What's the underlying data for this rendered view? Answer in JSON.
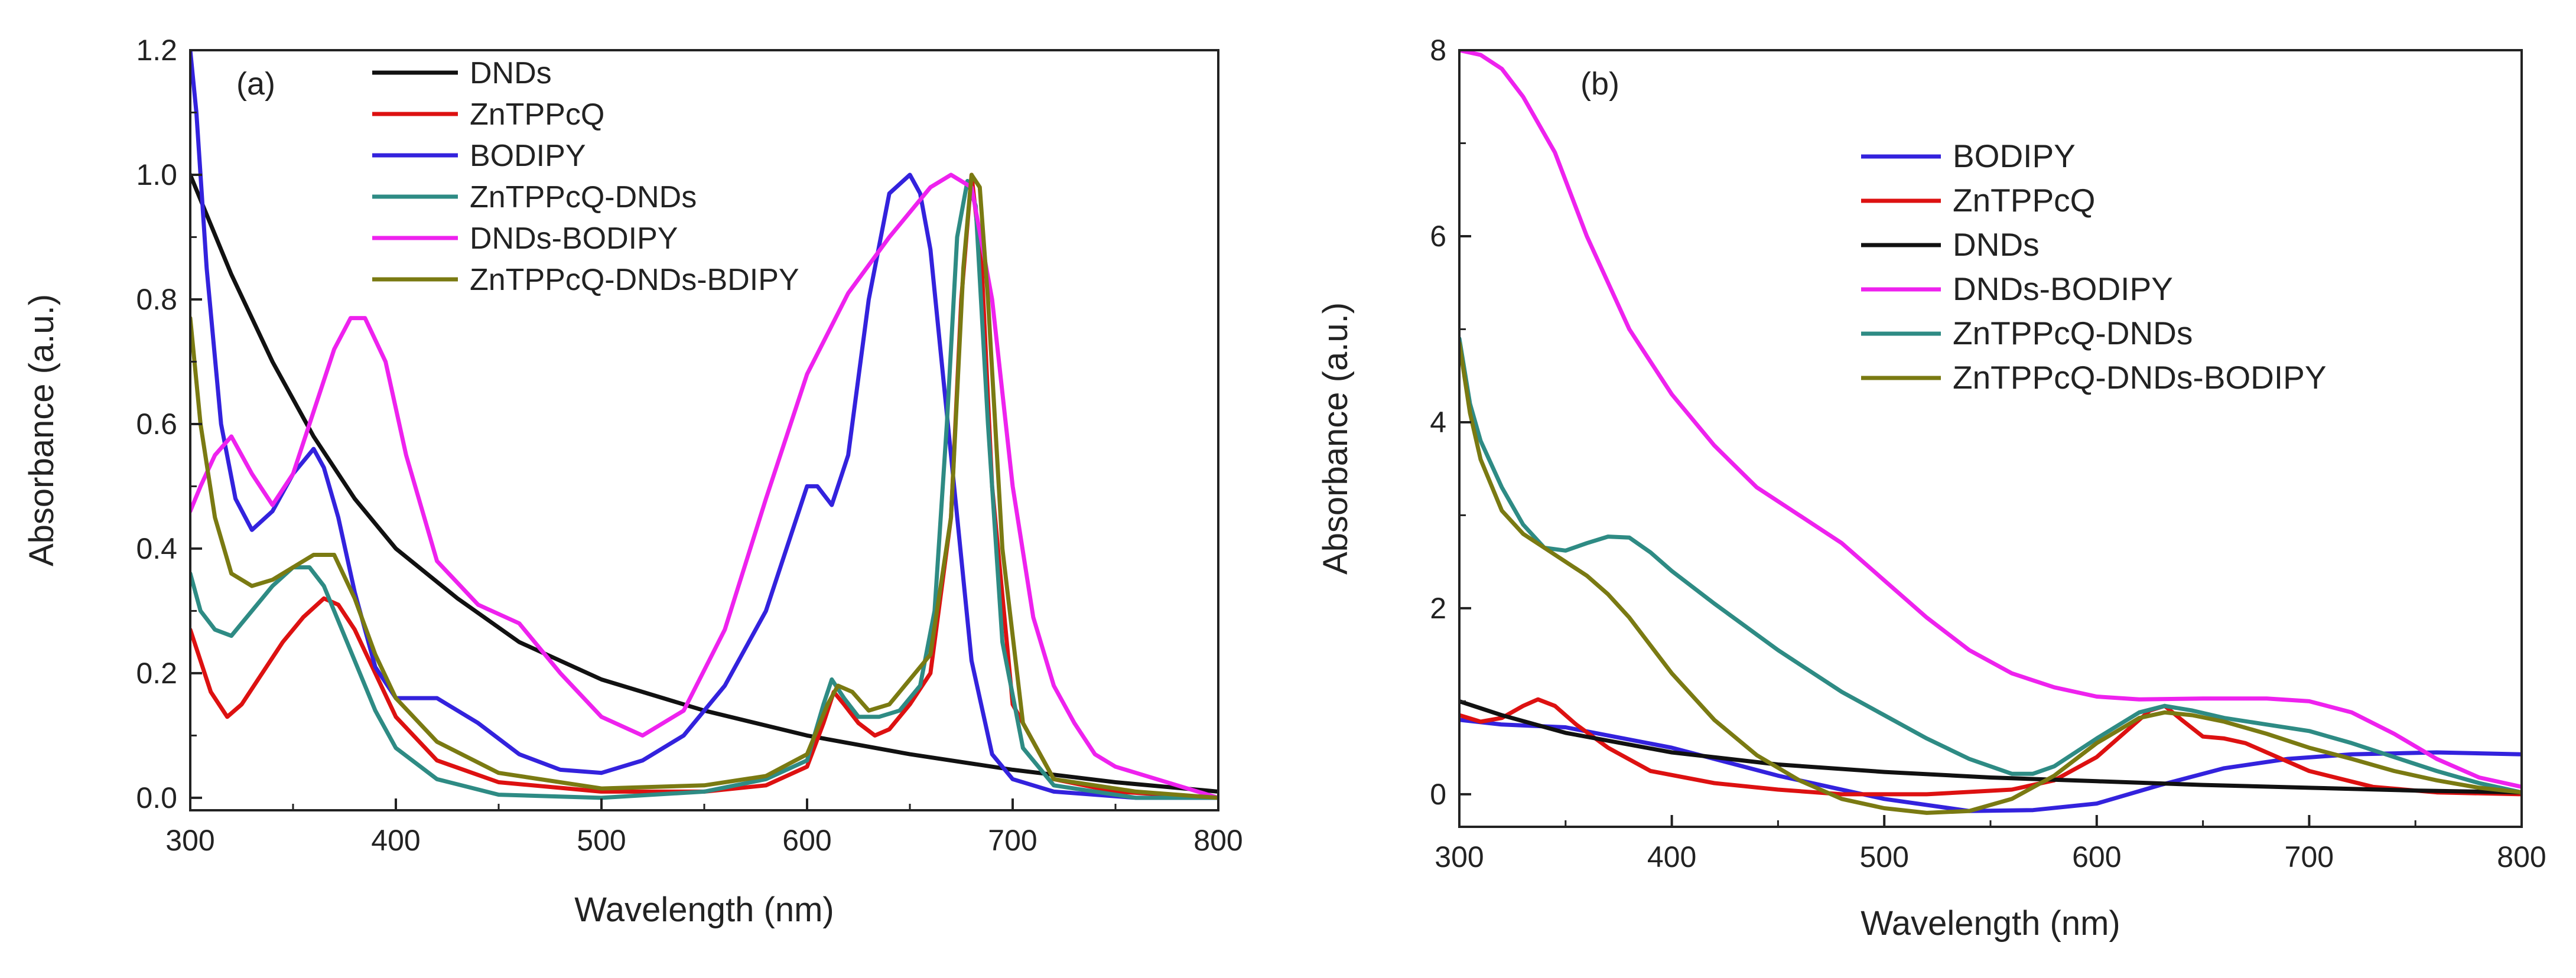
{
  "chart_data": [
    {
      "type": "line",
      "panel_label": "(a)",
      "xlabel": "Wavelength (nm)",
      "ylabel": "Absorbance (a.u.)",
      "xlim": [
        300,
        800
      ],
      "ylim": [
        -0.02,
        1.2
      ],
      "xticks": [
        300,
        400,
        500,
        600,
        700,
        800
      ],
      "yticks": [
        0.0,
        0.2,
        0.4,
        0.6,
        0.8,
        1.0,
        1.2
      ],
      "ytick_labels": [
        "0.0",
        "0.2",
        "0.4",
        "0.6",
        "0.8",
        "1.0",
        "1.2"
      ],
      "grid": false,
      "legend_position": "top-left",
      "legend": [
        "DNDs",
        "ZnTPPcQ",
        "BODIPY",
        "ZnTPPcQ-DNDs",
        "DNDs-BODIPY",
        "ZnTPPcQ-DNDs-BDIPY"
      ],
      "series": [
        {
          "name": "DNDs",
          "color": "#111111",
          "x": [
            300,
            310,
            320,
            340,
            360,
            380,
            400,
            430,
            460,
            500,
            550,
            600,
            650,
            700,
            750,
            800
          ],
          "y": [
            1.0,
            0.92,
            0.84,
            0.7,
            0.58,
            0.48,
            0.4,
            0.32,
            0.25,
            0.19,
            0.14,
            0.1,
            0.07,
            0.045,
            0.025,
            0.01
          ]
        },
        {
          "name": "ZnTPPcQ",
          "color": "#dd1111",
          "x": [
            300,
            305,
            310,
            318,
            325,
            335,
            345,
            355,
            365,
            372,
            380,
            390,
            400,
            420,
            450,
            500,
            550,
            580,
            600,
            608,
            613,
            618,
            625,
            633,
            640,
            650,
            660,
            670,
            675,
            680,
            685,
            690,
            700,
            720,
            750,
            800
          ],
          "y": [
            0.27,
            0.22,
            0.17,
            0.13,
            0.15,
            0.2,
            0.25,
            0.29,
            0.32,
            0.31,
            0.27,
            0.2,
            0.13,
            0.06,
            0.025,
            0.01,
            0.01,
            0.02,
            0.05,
            0.12,
            0.17,
            0.15,
            0.12,
            0.1,
            0.11,
            0.15,
            0.2,
            0.45,
            0.8,
            1.0,
            0.85,
            0.5,
            0.15,
            0.03,
            0.01,
            0.0
          ]
        },
        {
          "name": "BODIPY",
          "color": "#3322dd",
          "x": [
            300,
            303,
            308,
            315,
            322,
            330,
            340,
            350,
            360,
            365,
            372,
            380,
            390,
            400,
            420,
            440,
            460,
            480,
            500,
            520,
            540,
            560,
            580,
            590,
            600,
            605,
            612,
            620,
            630,
            640,
            650,
            655,
            660,
            670,
            680,
            690,
            700,
            720,
            760,
            800
          ],
          "y": [
            1.2,
            1.1,
            0.85,
            0.6,
            0.48,
            0.43,
            0.46,
            0.52,
            0.56,
            0.53,
            0.45,
            0.33,
            0.21,
            0.16,
            0.16,
            0.12,
            0.07,
            0.045,
            0.04,
            0.06,
            0.1,
            0.18,
            0.3,
            0.4,
            0.5,
            0.5,
            0.47,
            0.55,
            0.8,
            0.97,
            1.0,
            0.97,
            0.88,
            0.55,
            0.22,
            0.07,
            0.03,
            0.01,
            0.0,
            0.0
          ]
        },
        {
          "name": "ZnTPPcQ-DNDs",
          "color": "#2e8b84",
          "x": [
            300,
            305,
            312,
            320,
            330,
            340,
            350,
            358,
            365,
            370,
            380,
            390,
            400,
            420,
            450,
            500,
            550,
            580,
            600,
            608,
            612,
            618,
            625,
            635,
            645,
            655,
            662,
            668,
            673,
            678,
            682,
            688,
            695,
            705,
            720,
            760,
            800
          ],
          "y": [
            0.36,
            0.3,
            0.27,
            0.26,
            0.3,
            0.34,
            0.37,
            0.37,
            0.34,
            0.3,
            0.22,
            0.14,
            0.08,
            0.03,
            0.005,
            0.0,
            0.01,
            0.03,
            0.06,
            0.15,
            0.19,
            0.16,
            0.13,
            0.13,
            0.14,
            0.18,
            0.3,
            0.6,
            0.9,
            0.99,
            0.95,
            0.6,
            0.25,
            0.08,
            0.02,
            0.0,
            0.0
          ]
        },
        {
          "name": "DNDs-BODIPY",
          "color": "#ee22ee",
          "x": [
            300,
            305,
            312,
            320,
            330,
            340,
            350,
            360,
            370,
            378,
            385,
            395,
            405,
            420,
            440,
            460,
            480,
            500,
            520,
            540,
            560,
            580,
            600,
            620,
            640,
            660,
            670,
            680,
            690,
            700,
            710,
            720,
            730,
            740,
            750,
            760,
            780,
            800
          ],
          "y": [
            0.46,
            0.5,
            0.55,
            0.58,
            0.52,
            0.47,
            0.52,
            0.62,
            0.72,
            0.77,
            0.77,
            0.7,
            0.55,
            0.38,
            0.31,
            0.28,
            0.2,
            0.13,
            0.1,
            0.14,
            0.27,
            0.48,
            0.68,
            0.81,
            0.9,
            0.98,
            1.0,
            0.98,
            0.8,
            0.5,
            0.29,
            0.18,
            0.12,
            0.07,
            0.05,
            0.04,
            0.02,
            0.0
          ]
        },
        {
          "name": "ZnTPPcQ-DNDs-BDIPY",
          "color": "#7a7a12",
          "x": [
            300,
            305,
            312,
            320,
            330,
            340,
            350,
            360,
            370,
            380,
            390,
            400,
            420,
            450,
            500,
            550,
            580,
            600,
            610,
            615,
            622,
            630,
            640,
            650,
            660,
            670,
            676,
            680,
            684,
            688,
            695,
            705,
            720,
            760,
            800
          ],
          "y": [
            0.77,
            0.6,
            0.45,
            0.36,
            0.34,
            0.35,
            0.37,
            0.39,
            0.39,
            0.32,
            0.23,
            0.16,
            0.09,
            0.04,
            0.015,
            0.02,
            0.035,
            0.07,
            0.15,
            0.18,
            0.17,
            0.14,
            0.15,
            0.19,
            0.23,
            0.45,
            0.85,
            1.0,
            0.98,
            0.8,
            0.4,
            0.12,
            0.03,
            0.01,
            0.0
          ]
        }
      ]
    },
    {
      "type": "line",
      "panel_label": "(b)",
      "xlabel": "Wavelength (nm)",
      "ylabel": "Absorbance (a.u.)",
      "xlim": [
        300,
        800
      ],
      "ylim": [
        -0.35,
        8.0
      ],
      "xticks": [
        300,
        400,
        500,
        600,
        700,
        800
      ],
      "yticks": [
        0,
        2,
        4,
        6,
        8
      ],
      "ytick_labels": [
        "0",
        "2",
        "4",
        "6",
        "8"
      ],
      "grid": false,
      "legend_position": "top-right",
      "legend": [
        "BODIPY",
        "ZnTPPcQ",
        "DNDs",
        "DNDs-BODIPY",
        "ZnTPPcQ-DNDs",
        "ZnTPPcQ-DNDs-BODIPY"
      ],
      "series": [
        {
          "name": "BODIPY",
          "color": "#3322dd",
          "x": [
            300,
            320,
            350,
            400,
            450,
            500,
            540,
            570,
            600,
            630,
            660,
            690,
            720,
            760,
            800
          ],
          "y": [
            0.8,
            0.75,
            0.72,
            0.5,
            0.2,
            -0.05,
            -0.18,
            -0.17,
            -0.1,
            0.1,
            0.28,
            0.38,
            0.43,
            0.45,
            0.43
          ]
        },
        {
          "name": "ZnTPPcQ",
          "color": "#dd1111",
          "x": [
            300,
            310,
            320,
            330,
            337,
            345,
            355,
            370,
            390,
            420,
            450,
            480,
            520,
            560,
            580,
            600,
            615,
            625,
            632,
            640,
            650,
            660,
            670,
            680,
            700,
            730,
            760,
            800
          ],
          "y": [
            0.85,
            0.78,
            0.82,
            0.95,
            1.02,
            0.95,
            0.75,
            0.5,
            0.25,
            0.12,
            0.05,
            0.0,
            0.0,
            0.05,
            0.15,
            0.4,
            0.7,
            0.9,
            0.95,
            0.8,
            0.62,
            0.6,
            0.55,
            0.45,
            0.25,
            0.08,
            0.02,
            0.0
          ]
        },
        {
          "name": "DNDs",
          "color": "#111111",
          "x": [
            300,
            320,
            350,
            400,
            450,
            500,
            550,
            600,
            650,
            700,
            750,
            800
          ],
          "y": [
            1.0,
            0.85,
            0.66,
            0.45,
            0.32,
            0.24,
            0.18,
            0.14,
            0.1,
            0.07,
            0.04,
            0.02
          ]
        },
        {
          "name": "DNDs-BODIPY",
          "color": "#ee22ee",
          "x": [
            300,
            310,
            320,
            330,
            345,
            360,
            380,
            400,
            420,
            440,
            460,
            480,
            500,
            520,
            540,
            560,
            580,
            600,
            620,
            650,
            680,
            700,
            720,
            740,
            760,
            780,
            800
          ],
          "y": [
            8.0,
            7.95,
            7.8,
            7.5,
            6.9,
            6.0,
            5.0,
            4.3,
            3.75,
            3.3,
            3.0,
            2.7,
            2.3,
            1.9,
            1.55,
            1.3,
            1.15,
            1.05,
            1.02,
            1.03,
            1.03,
            1.0,
            0.88,
            0.65,
            0.38,
            0.18,
            0.08
          ]
        },
        {
          "name": "ZnTPPcQ-DNDs",
          "color": "#2e8b84",
          "x": [
            300,
            305,
            310,
            320,
            330,
            340,
            350,
            360,
            370,
            380,
            390,
            400,
            420,
            450,
            480,
            500,
            520,
            540,
            560,
            570,
            580,
            600,
            620,
            632,
            645,
            660,
            680,
            700,
            720,
            740,
            760,
            780,
            800
          ],
          "y": [
            4.9,
            4.2,
            3.8,
            3.3,
            2.9,
            2.65,
            2.62,
            2.7,
            2.77,
            2.76,
            2.6,
            2.4,
            2.05,
            1.55,
            1.1,
            0.85,
            0.6,
            0.38,
            0.22,
            0.22,
            0.3,
            0.6,
            0.88,
            0.95,
            0.9,
            0.82,
            0.75,
            0.68,
            0.55,
            0.4,
            0.25,
            0.12,
            0.02
          ]
        },
        {
          "name": "ZnTPPcQ-DNDs-BODIPY",
          "color": "#7a7a12",
          "x": [
            300,
            305,
            310,
            320,
            330,
            340,
            350,
            360,
            370,
            380,
            390,
            400,
            420,
            440,
            460,
            480,
            500,
            520,
            540,
            560,
            580,
            600,
            620,
            632,
            645,
            660,
            680,
            700,
            720,
            740,
            760,
            780,
            800
          ],
          "y": [
            4.85,
            4.1,
            3.6,
            3.05,
            2.8,
            2.65,
            2.5,
            2.35,
            2.15,
            1.9,
            1.6,
            1.3,
            0.8,
            0.42,
            0.15,
            -0.05,
            -0.15,
            -0.2,
            -0.18,
            -0.05,
            0.2,
            0.55,
            0.82,
            0.88,
            0.85,
            0.78,
            0.65,
            0.5,
            0.38,
            0.25,
            0.15,
            0.07,
            0.02
          ]
        }
      ]
    }
  ]
}
